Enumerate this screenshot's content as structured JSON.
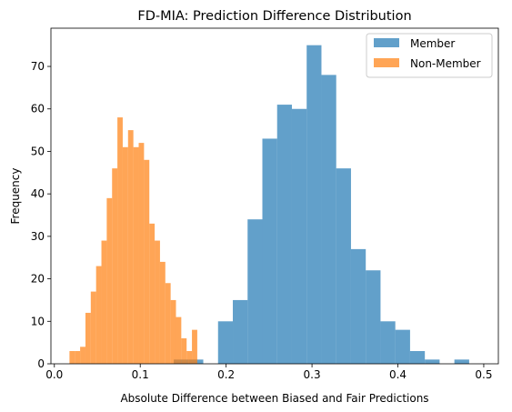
{
  "chart_data": {
    "type": "bar",
    "subtype": "overlaid-histogram",
    "title": "FD-MIA: Prediction Difference Distribution",
    "xlabel": "Absolute Difference between Biased and Fair Predictions",
    "ylabel": "Frequency",
    "xlim": [
      -0.004,
      0.517
    ],
    "ylim": [
      0,
      79
    ],
    "xticks": [
      "0.0",
      "0.1",
      "0.2",
      "0.3",
      "0.4",
      "0.5"
    ],
    "yticks": [
      "0",
      "10",
      "20",
      "30",
      "40",
      "50",
      "60",
      "70"
    ],
    "grid": false,
    "legend_position": "top-right",
    "series": [
      {
        "name": "Member",
        "color": "#1f77b4",
        "opacity": 0.7,
        "bin_edges": [
          0.139,
          0.1562,
          0.1734,
          0.1906,
          0.2078,
          0.225,
          0.2422,
          0.2594,
          0.2766,
          0.2938,
          0.311,
          0.3282,
          0.3454,
          0.3626,
          0.3798,
          0.397,
          0.4142,
          0.4314,
          0.4486,
          0.4658,
          0.483,
          0.5002
        ],
        "counts": [
          1,
          1,
          0,
          10,
          15,
          34,
          53,
          61,
          60,
          75,
          68,
          46,
          27,
          22,
          10,
          8,
          3,
          1,
          0,
          1,
          0
        ]
      },
      {
        "name": "Non-Member",
        "color": "#ff7f0e",
        "opacity": 0.7,
        "bin_edges": [
          0.0176,
          0.0238,
          0.03,
          0.0362,
          0.0424,
          0.0486,
          0.0548,
          0.061,
          0.0672,
          0.0734,
          0.0796,
          0.0858,
          0.092,
          0.0982,
          0.1044,
          0.1106,
          0.1168,
          0.123,
          0.1292,
          0.1354,
          0.1416,
          0.1478,
          0.154,
          0.1602,
          0.1664,
          0.1726,
          0.1788
        ],
        "counts": [
          3,
          3,
          4,
          12,
          17,
          23,
          29,
          39,
          46,
          58,
          51,
          55,
          51,
          52,
          48,
          33,
          29,
          24,
          19,
          15,
          11,
          6,
          3,
          8,
          0,
          0
        ]
      }
    ]
  }
}
